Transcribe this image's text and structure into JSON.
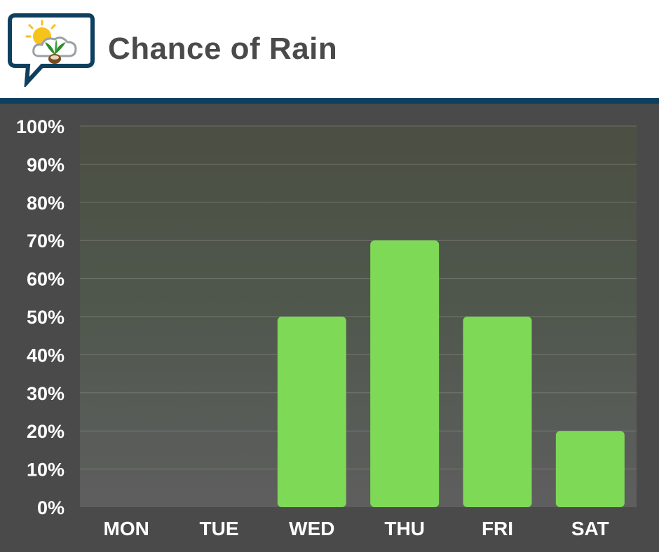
{
  "header": {
    "title": "Chance of Rain",
    "logo_icon": "weather-plant-speech-bubble-icon"
  },
  "colors": {
    "bar": "#7ed957",
    "background": "#4a4a4a",
    "header_rule": "#0f3f5f"
  },
  "chart_data": {
    "type": "bar",
    "title": "Chance of Rain",
    "categories": [
      "MON",
      "TUE",
      "WED",
      "THU",
      "FRI",
      "SAT"
    ],
    "values": [
      0,
      0,
      50,
      70,
      50,
      20
    ],
    "ylim": [
      0,
      100
    ],
    "yticks": [
      "0%",
      "10%",
      "20%",
      "30%",
      "40%",
      "50%",
      "60%",
      "70%",
      "80%",
      "90%",
      "100%"
    ],
    "xlabel": "",
    "ylabel": "",
    "grid": true,
    "legend": "none"
  }
}
